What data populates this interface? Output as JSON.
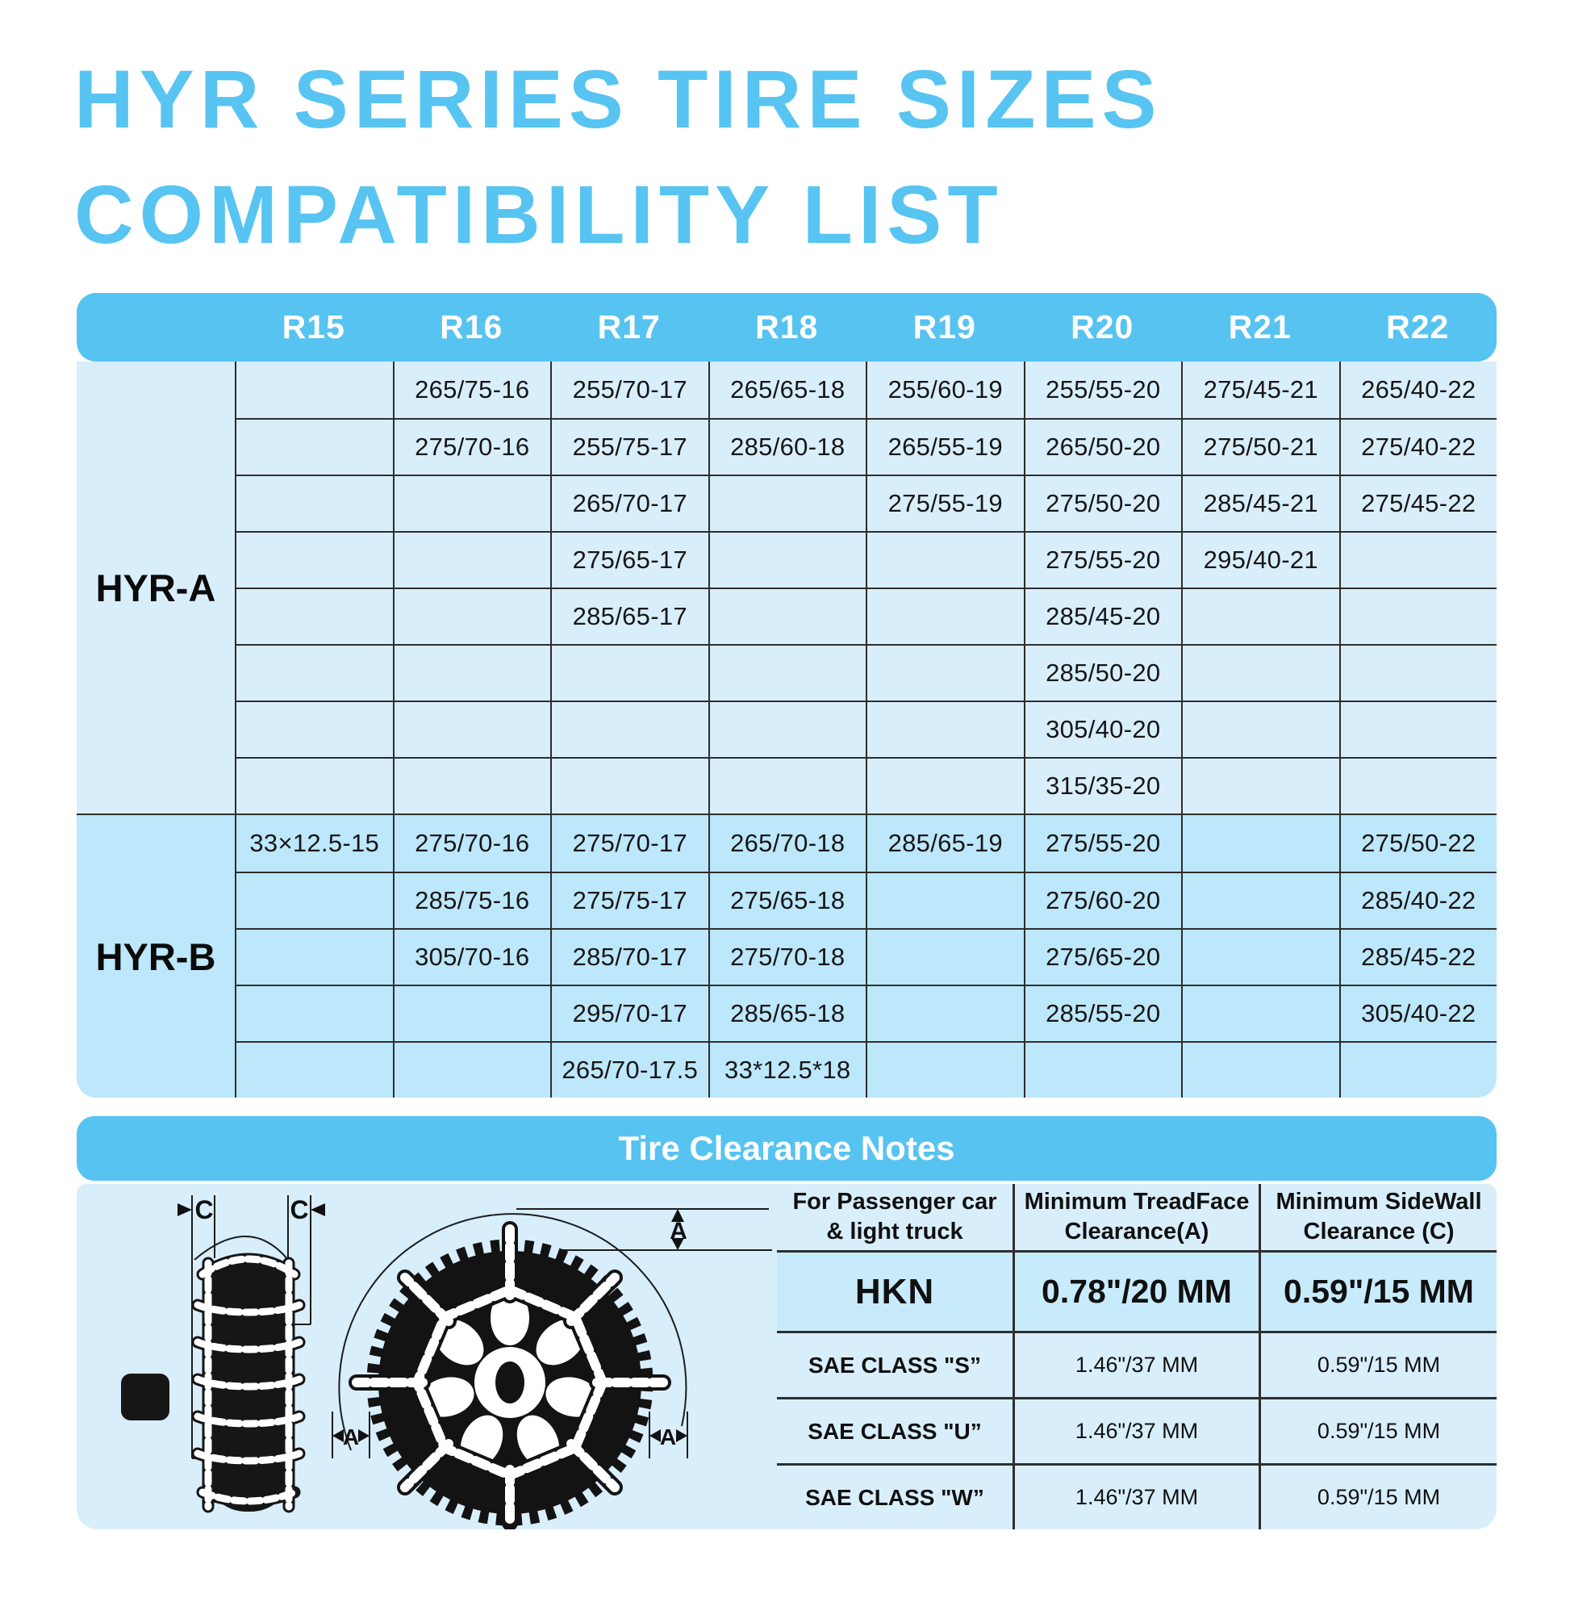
{
  "title": {
    "lines": [
      "HYR SERIES TIRE SIZES",
      "COMPATIBILITY LIST"
    ]
  },
  "compatibility_table": {
    "columns": [
      "R15",
      "R16",
      "R17",
      "R18",
      "R19",
      "R20",
      "R21",
      "R22"
    ],
    "sections": [
      {
        "label": "HYR-A",
        "rows": [
          [
            "",
            "265/75-16",
            "255/70-17",
            "265/65-18",
            "255/60-19",
            "255/55-20",
            "275/45-21",
            "265/40-22"
          ],
          [
            "",
            "275/70-16",
            "255/75-17",
            "285/60-18",
            "265/55-19",
            "265/50-20",
            "275/50-21",
            "275/40-22"
          ],
          [
            "",
            "",
            "265/70-17",
            "",
            "275/55-19",
            "275/50-20",
            "285/45-21",
            "275/45-22"
          ],
          [
            "",
            "",
            "275/65-17",
            "",
            "",
            "275/55-20",
            "295/40-21",
            ""
          ],
          [
            "",
            "",
            "285/65-17",
            "",
            "",
            "285/45-20",
            "",
            ""
          ],
          [
            "",
            "",
            "",
            "",
            "",
            "285/50-20",
            "",
            ""
          ],
          [
            "",
            "",
            "",
            "",
            "",
            "305/40-20",
            "",
            ""
          ],
          [
            "",
            "",
            "",
            "",
            "",
            "315/35-20",
            "",
            ""
          ]
        ]
      },
      {
        "label": "HYR-B",
        "rows": [
          [
            "33×12.5-15",
            "275/70-16",
            "275/70-17",
            "265/70-18",
            "285/65-19",
            "275/55-20",
            "",
            "275/50-22"
          ],
          [
            "",
            "285/75-16",
            "275/75-17",
            "275/65-18",
            "",
            "275/60-20",
            "",
            "285/40-22"
          ],
          [
            "",
            "305/70-16",
            "285/70-17",
            "275/70-18",
            "",
            "275/65-20",
            "",
            "285/45-22"
          ],
          [
            "",
            "",
            "295/70-17",
            "285/65-18",
            "",
            "285/55-20",
            "",
            "305/40-22"
          ],
          [
            "",
            "",
            "265/70-17.5",
            "33*12.5*18",
            "",
            "",
            "",
            ""
          ]
        ]
      }
    ]
  },
  "clearance_notes": {
    "title": "Tire Clearance Notes",
    "table": {
      "headers": [
        [
          "For Passenger car",
          "& light truck"
        ],
        [
          "Minimum TreadFace",
          "Clearance(A)"
        ],
        [
          "Minimum SideWall",
          "Clearance (C)"
        ]
      ],
      "rows": [
        {
          "name": "HKN",
          "tread": "0.78\"/20 MM",
          "side": "0.59\"/15 MM",
          "highlight": true
        },
        {
          "name": "SAE CLASS \"S”",
          "tread": "1.46\"/37 MM",
          "side": "0.59\"/15 MM",
          "highlight": false
        },
        {
          "name": "SAE CLASS \"U”",
          "tread": "1.46\"/37 MM",
          "side": "0.59\"/15 MM",
          "highlight": false
        },
        {
          "name": "SAE CLASS \"W”",
          "tread": "1.46\"/37 MM",
          "side": "0.59\"/15 MM",
          "highlight": false
        }
      ]
    },
    "diagram": {
      "sidewall_label": "C",
      "treadface_label": "A"
    }
  },
  "colors": {
    "accent_blue": "#57c3f1",
    "title_blue": "#58c4f2",
    "section_a_bg": "#d9eefb",
    "section_b_bg": "#bde7fa",
    "highlight_row_bg": "#c8ebfb",
    "grid_line": "#2e2e2e"
  }
}
